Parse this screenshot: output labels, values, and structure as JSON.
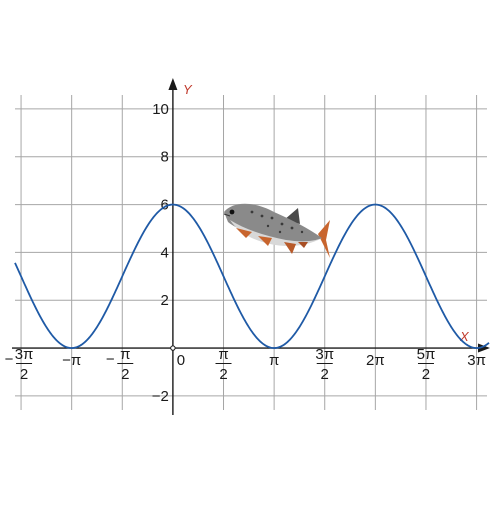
{
  "chart_data": {
    "type": "line",
    "title": "",
    "xlabel": "X",
    "ylabel": "Y",
    "xlim": [
      -4.9,
      9.81
    ],
    "ylim": [
      -2.8,
      11.0
    ],
    "grid": true,
    "legend": "none",
    "x_ticks": [
      {
        "value": -4.712,
        "num": "3π",
        "den": "2",
        "sign": "−",
        "label": "−3π/2"
      },
      {
        "value": -3.1416,
        "label": "−π"
      },
      {
        "value": -1.5708,
        "num": "π",
        "den": "2",
        "sign": "−",
        "label": "−π/2"
      },
      {
        "value": 0,
        "label": "0"
      },
      {
        "value": 1.5708,
        "num": "π",
        "den": "2",
        "sign": "",
        "label": "π/2"
      },
      {
        "value": 3.1416,
        "label": "π"
      },
      {
        "value": 4.712,
        "num": "3π",
        "den": "2",
        "sign": "",
        "label": "3π/2"
      },
      {
        "value": 6.2832,
        "label": "2π"
      },
      {
        "value": 7.854,
        "num": "5π",
        "den": "2",
        "sign": "",
        "label": "5π/2"
      },
      {
        "value": 9.4248,
        "label": "3π"
      }
    ],
    "y_ticks": [
      {
        "value": -2,
        "label": "−2"
      },
      {
        "value": 2,
        "label": "2"
      },
      {
        "value": 4,
        "label": "4"
      },
      {
        "value": 6,
        "label": "6"
      },
      {
        "value": 8,
        "label": "8"
      },
      {
        "value": 10,
        "label": "10"
      }
    ],
    "series": [
      {
        "function": "3*cos(x)+3",
        "x_range": [
          -4.9,
          9.81
        ],
        "color": "#1f5aa6"
      }
    ]
  },
  "colors": {
    "grid": "#a6a6a6",
    "axis": "#1a1a1a",
    "curve": "#1f5aa6",
    "axis_label": "#c0392b"
  },
  "overlay": {
    "icon": "trout-fish-image"
  }
}
